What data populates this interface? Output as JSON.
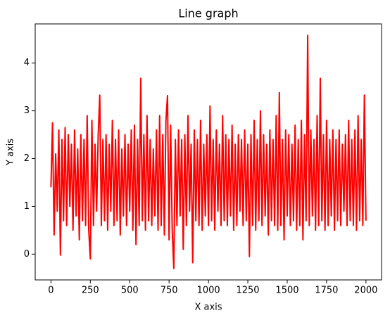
{
  "chart_data": {
    "type": "line",
    "title": "Line graph",
    "xlabel": "X axis",
    "ylabel": "Y axis",
    "color": "#ff0000",
    "x": [
      0,
      10,
      20,
      30,
      40,
      50,
      60,
      70,
      80,
      90,
      100,
      110,
      120,
      130,
      140,
      150,
      160,
      170,
      180,
      190,
      200,
      210,
      220,
      230,
      240,
      250,
      260,
      270,
      280,
      290,
      300,
      310,
      320,
      330,
      340,
      350,
      360,
      370,
      380,
      390,
      400,
      410,
      420,
      430,
      440,
      450,
      460,
      470,
      480,
      490,
      500,
      510,
      520,
      530,
      540,
      550,
      560,
      570,
      580,
      590,
      600,
      610,
      620,
      630,
      640,
      650,
      660,
      670,
      680,
      690,
      700,
      710,
      720,
      730,
      740,
      750,
      760,
      770,
      780,
      790,
      800,
      810,
      820,
      830,
      840,
      850,
      860,
      870,
      880,
      890,
      900,
      910,
      920,
      930,
      940,
      950,
      960,
      970,
      980,
      990,
      1000,
      1010,
      1020,
      1030,
      1040,
      1050,
      1060,
      1070,
      1080,
      1090,
      1100,
      1110,
      1120,
      1130,
      1140,
      1150,
      1160,
      1170,
      1180,
      1190,
      1200,
      1210,
      1220,
      1230,
      1240,
      1250,
      1260,
      1270,
      1280,
      1290,
      1300,
      1310,
      1320,
      1330,
      1340,
      1350,
      1360,
      1370,
      1380,
      1390,
      1400,
      1410,
      1420,
      1430,
      1440,
      1450,
      1460,
      1470,
      1480,
      1490,
      1500,
      1510,
      1520,
      1530,
      1540,
      1550,
      1560,
      1570,
      1580,
      1590,
      1600,
      1610,
      1620,
      1630,
      1640,
      1650,
      1660,
      1670,
      1680,
      1690,
      1700,
      1710,
      1720,
      1730,
      1740,
      1750,
      1760,
      1770,
      1780,
      1790,
      1800,
      1810,
      1820,
      1830,
      1840,
      1850,
      1860,
      1870,
      1880,
      1890,
      1900,
      1910,
      1920,
      1930,
      1940,
      1950,
      1960,
      1970,
      1980,
      1990,
      2000
    ],
    "values": [
      1.4,
      2.75,
      0.4,
      2.1,
      0.9,
      2.6,
      -0.02,
      2.4,
      0.7,
      2.65,
      0.6,
      2.5,
      1.0,
      2.3,
      0.5,
      2.6,
      0.8,
      2.2,
      0.3,
      2.5,
      0.7,
      2.4,
      0.6,
      2.9,
      0.5,
      -0.1,
      2.8,
      0.6,
      2.3,
      0.9,
      2.5,
      3.33,
      0.6,
      2.4,
      0.7,
      2.5,
      0.5,
      2.3,
      0.9,
      2.8,
      0.6,
      2.4,
      0.7,
      2.6,
      0.4,
      2.2,
      0.8,
      2.5,
      0.6,
      2.3,
      0.9,
      2.6,
      0.5,
      2.7,
      0.2,
      2.4,
      0.6,
      3.68,
      0.7,
      2.5,
      0.5,
      2.9,
      0.7,
      2.4,
      0.6,
      2.2,
      0.8,
      2.6,
      0.5,
      2.9,
      0.6,
      2.5,
      0.4,
      2.8,
      3.32,
      0.3,
      2.7,
      0.5,
      -0.3,
      2.4,
      0.6,
      2.6,
      0.8,
      2.4,
      0.1,
      2.5,
      0.6,
      2.9,
      0.9,
      2.3,
      -0.18,
      2.6,
      0.7,
      2.4,
      0.6,
      2.8,
      0.5,
      2.3,
      0.8,
      2.5,
      0.6,
      3.1,
      0.7,
      2.4,
      0.5,
      2.6,
      0.9,
      2.3,
      0.6,
      2.9,
      0.7,
      2.5,
      0.6,
      2.4,
      0.8,
      2.7,
      0.5,
      2.3,
      0.6,
      2.5,
      0.9,
      2.4,
      0.6,
      2.6,
      0.7,
      2.3,
      -0.05,
      2.5,
      0.6,
      2.8,
      0.5,
      2.4,
      0.7,
      3.0,
      0.6,
      2.5,
      0.8,
      2.3,
      0.4,
      2.6,
      0.7,
      2.4,
      0.6,
      2.9,
      0.5,
      3.38,
      0.6,
      2.4,
      0.3,
      2.6,
      0.8,
      2.5,
      0.6,
      2.3,
      0.7,
      2.7,
      0.5,
      2.4,
      0.6,
      2.8,
      0.3,
      2.5,
      0.7,
      4.58,
      0.6,
      2.6,
      0.8,
      2.4,
      0.5,
      2.9,
      0.6,
      3.68,
      0.7,
      2.5,
      0.5,
      2.8,
      0.6,
      2.4,
      0.8,
      2.6,
      0.5,
      2.4,
      0.7,
      2.6,
      0.6,
      2.3,
      0.9,
      2.5,
      0.6,
      2.8,
      0.7,
      2.4,
      0.6,
      2.6,
      0.5,
      2.9,
      0.7,
      2.4,
      0.6,
      3.33,
      0.7
    ],
    "xlim": [
      -100,
      2099
    ],
    "ylim": [
      -0.54,
      4.82
    ],
    "xticks": [
      0,
      250,
      500,
      750,
      1000,
      1250,
      1500,
      1750,
      2000
    ],
    "yticks": [
      0,
      1,
      2,
      3,
      4
    ]
  }
}
